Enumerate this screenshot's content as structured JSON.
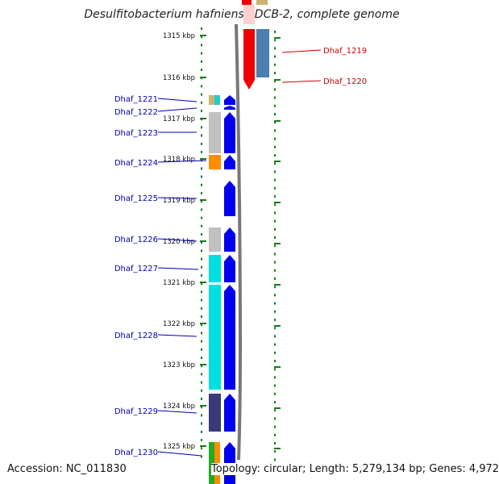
{
  "title": "Desulfitobacterium hafniense DCB-2, complete genome",
  "accession": "Accession: NC_011830",
  "topology": "Topology: circular; Length: 5,279,134 bp; Genes: 4,972",
  "colors": {
    "tick": "#1a7a1a",
    "label_forward": "#0000aa",
    "label_reverse": "#cc0000",
    "backbone": "#777777"
  },
  "scale": {
    "ticks": [
      "1315 kbp",
      "1316 kbp",
      "1317 kbp",
      "1318 kbp",
      "1319 kbp",
      "1320 kbp",
      "1321 kbp",
      "1322 kbp",
      "1323 kbp",
      "1324 kbp",
      "1325 kbp"
    ]
  },
  "genes_forward": [
    {
      "label": "Dhaf_1221",
      "color": "#c8b46e",
      "color2": "#22cccc"
    },
    {
      "label": "Dhaf_1222",
      "color": "#ffffff"
    },
    {
      "label": "Dhaf_1223",
      "color": "#c0c0c0"
    },
    {
      "label": "Dhaf_1224",
      "color": "#ff8c00"
    },
    {
      "label": "Dhaf_1225",
      "color": "#ffffff"
    },
    {
      "label": "Dhaf_1226",
      "color": "#c0c0c0"
    },
    {
      "label": "Dhaf_1227",
      "color": "#00e0e0"
    },
    {
      "label": "Dhaf_1228",
      "color": "#00e0e0"
    },
    {
      "label": "Dhaf_1229",
      "color": "#3a3a7a"
    },
    {
      "label": "Dhaf_1230",
      "color": "#22aa22",
      "color2": "#ff8c00"
    }
  ],
  "genes_reverse": [
    {
      "label": "Dhaf_1219",
      "color": "#ee0000"
    },
    {
      "label": "Dhaf_1220",
      "color": "#4a7fb0"
    }
  ]
}
